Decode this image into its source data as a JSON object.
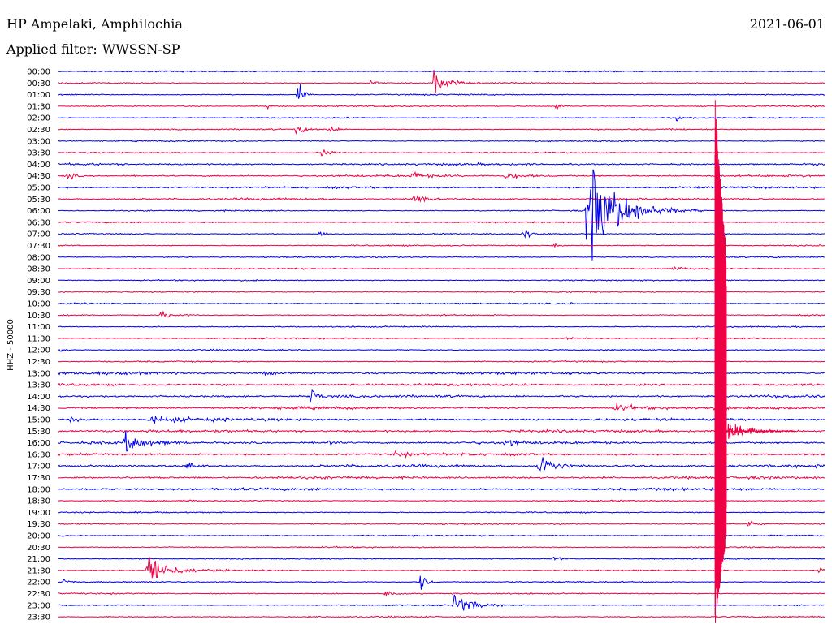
{
  "header": {
    "station": "HP Ampelaki, Amphilochia",
    "date": "2021-06-01",
    "filter_prefix": "Applied filter:",
    "filter_name": "WWSSN-SP"
  },
  "chart_data": {
    "type": "line",
    "title": "HP Ampelaki, Amphilochia",
    "ylabel": "HHZ - 50000",
    "row_labels": [
      "00:00",
      "00:30",
      "01:00",
      "01:30",
      "02:00",
      "02:30",
      "03:00",
      "03:30",
      "04:00",
      "04:30",
      "05:00",
      "05:30",
      "06:00",
      "06:30",
      "07:00",
      "07:30",
      "08:00",
      "08:30",
      "09:00",
      "09:30",
      "10:00",
      "10:30",
      "11:00",
      "11:30",
      "12:00",
      "12:30",
      "13:00",
      "13:30",
      "14:00",
      "14:30",
      "15:00",
      "15:30",
      "16:00",
      "16:30",
      "17:00",
      "17:30",
      "18:00",
      "18:30",
      "19:00",
      "19:30",
      "20:00",
      "20:30",
      "21:00",
      "21:30",
      "22:00",
      "22:30",
      "23:00",
      "23:30"
    ],
    "x_range_minutes": [
      0,
      30
    ],
    "trace_colors": [
      "#0000ee",
      "#ee0044"
    ],
    "events": [
      {
        "row": "00:30",
        "minute": 14.7,
        "amplitude": 11,
        "duration_min": 0.8
      },
      {
        "row": "00:30",
        "minute": 12.2,
        "amplitude": 3,
        "duration_min": 0.4
      },
      {
        "row": "01:00",
        "minute": 9.4,
        "amplitude": 14,
        "duration_min": 0.25
      },
      {
        "row": "01:30",
        "minute": 8.2,
        "amplitude": 4,
        "duration_min": 0.15
      },
      {
        "row": "01:30",
        "minute": 19.5,
        "amplitude": 4,
        "duration_min": 0.3
      },
      {
        "row": "02:00",
        "minute": 24.2,
        "amplitude": 2,
        "duration_min": 0.4
      },
      {
        "row": "02:30",
        "minute": 9.3,
        "amplitude": 4,
        "duration_min": 0.6
      },
      {
        "row": "02:30",
        "minute": 10.6,
        "amplitude": 7,
        "duration_min": 0.3
      },
      {
        "row": "03:30",
        "minute": 10.2,
        "amplitude": 6,
        "duration_min": 0.5
      },
      {
        "row": "04:30",
        "minute": 0.4,
        "amplitude": 4,
        "duration_min": 0.3
      },
      {
        "row": "04:30",
        "minute": 13.8,
        "amplitude": 3,
        "duration_min": 0.8
      },
      {
        "row": "04:30",
        "minute": 17.5,
        "amplitude": 3,
        "duration_min": 1.0
      },
      {
        "row": "05:30",
        "minute": 13.9,
        "amplitude": 9,
        "duration_min": 0.5
      },
      {
        "row": "06:00",
        "minute": 20.7,
        "amplitude": 55,
        "duration_min": 1.8
      },
      {
        "row": "07:00",
        "minute": 10.2,
        "amplitude": 3,
        "duration_min": 0.5
      },
      {
        "row": "07:00",
        "minute": 18.2,
        "amplitude": 5,
        "duration_min": 0.6
      },
      {
        "row": "07:30",
        "minute": 19.4,
        "amplitude": 3,
        "duration_min": 0.3
      },
      {
        "row": "08:30",
        "minute": 24.1,
        "amplitude": 2,
        "duration_min": 0.5
      },
      {
        "row": "10:00",
        "minute": 20.0,
        "amplitude": 3,
        "duration_min": 0.2
      },
      {
        "row": "10:30",
        "minute": 4.0,
        "amplitude": 3,
        "duration_min": 1.0
      },
      {
        "row": "11:30",
        "minute": 19.7,
        "amplitude": 2,
        "duration_min": 0.8
      },
      {
        "row": "12:00",
        "minute": 0.1,
        "amplitude": 4,
        "duration_min": 0.2
      },
      {
        "row": "13:00",
        "minute": 8.0,
        "amplitude": 2,
        "duration_min": 0.6
      },
      {
        "row": "14:00",
        "minute": 9.9,
        "amplitude": 10,
        "duration_min": 0.3
      },
      {
        "row": "14:30",
        "minute": 21.8,
        "amplitude": 4,
        "duration_min": 1.2
      },
      {
        "row": "15:00",
        "minute": 0.5,
        "amplitude": 4,
        "duration_min": 0.3
      },
      {
        "row": "15:00",
        "minute": 3.5,
        "amplitude": 3,
        "duration_min": 2.5
      },
      {
        "row": "16:00",
        "minute": 2.6,
        "amplitude": 9,
        "duration_min": 1.0
      },
      {
        "row": "16:00",
        "minute": 10.6,
        "amplitude": 5,
        "duration_min": 0.3
      },
      {
        "row": "16:00",
        "minute": 17.5,
        "amplitude": 5,
        "duration_min": 0.5
      },
      {
        "row": "16:30",
        "minute": 13.2,
        "amplitude": 3,
        "duration_min": 0.6
      },
      {
        "row": "17:00",
        "minute": 5.0,
        "amplitude": 5,
        "duration_min": 0.5
      },
      {
        "row": "17:00",
        "minute": 18.8,
        "amplitude": 14,
        "duration_min": 0.8
      },
      {
        "row": "19:30",
        "minute": 27.0,
        "amplitude": 4,
        "duration_min": 0.6
      },
      {
        "row": "21:00",
        "minute": 19.4,
        "amplitude": 2,
        "duration_min": 0.5
      },
      {
        "row": "21:30",
        "minute": 3.5,
        "amplitude": 16,
        "duration_min": 1.3
      },
      {
        "row": "21:30",
        "minute": 29.8,
        "amplitude": 4,
        "duration_min": 0.2
      },
      {
        "row": "22:00",
        "minute": 0.2,
        "amplitude": 3,
        "duration_min": 0.3
      },
      {
        "row": "22:00",
        "minute": 14.2,
        "amplitude": 11,
        "duration_min": 0.3
      },
      {
        "row": "22:30",
        "minute": 12.8,
        "amplitude": 3,
        "duration_min": 0.6
      },
      {
        "row": "23:00",
        "minute": 15.5,
        "amplitude": 11,
        "duration_min": 1.0
      }
    ],
    "large_event": {
      "row": "15:30",
      "minute": 25.8,
      "amplitude": 235,
      "extent_rows": [
        11,
        47
      ]
    }
  }
}
